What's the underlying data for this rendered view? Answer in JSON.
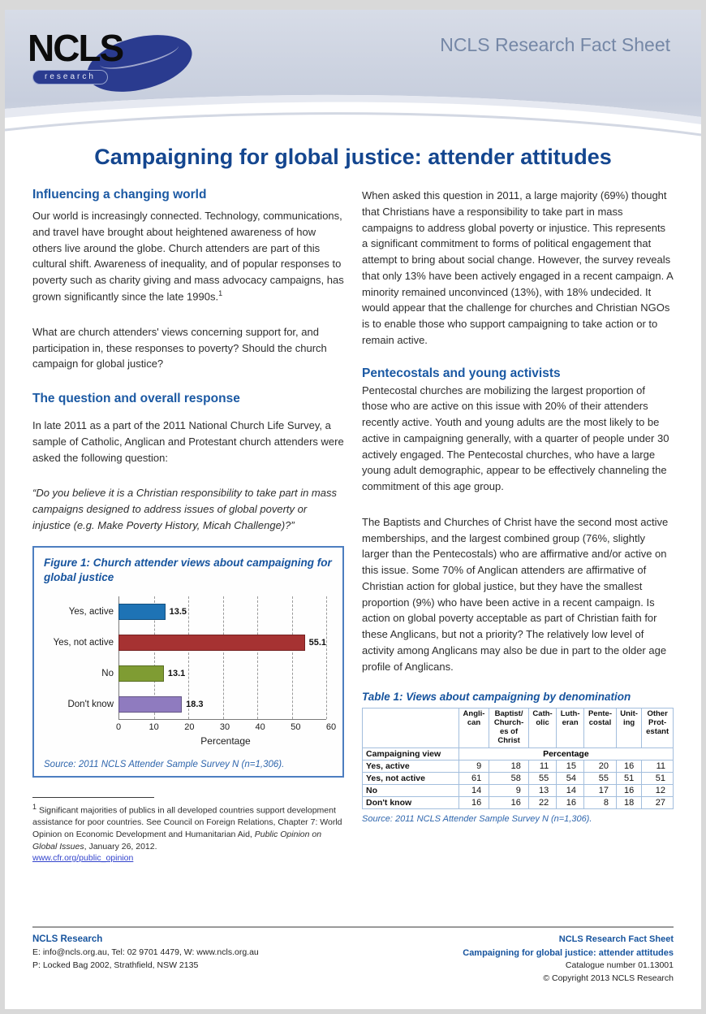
{
  "header": {
    "fact_sheet_label": "NCLS Research Fact Sheet",
    "logo_text": "NCLS",
    "logo_subtext": "research"
  },
  "title": "Campaigning for global justice: attender attitudes",
  "left_column": {
    "section1": {
      "heading": "Influencing a changing world",
      "p1": "Our world is increasingly connected. Technology, communications, and travel have brought about heightened awareness of how others live around the globe. Church attenders are part of this cultural shift. Awareness of inequality, and of popular responses to poverty such as charity giving and mass advocacy campaigns, has grown significantly since the late 1990s.",
      "p1_footnote_marker": "1",
      "p2": "What are church attenders' views concerning support for, and participation in, these responses to poverty? Should the church campaign for global justice?"
    },
    "section2": {
      "heading": "The question and overall response",
      "p1": "In late 2011 as a part of the 2011 National Church Life Survey, a sample of Catholic, Anglican and Protestant church attenders were asked the following question:",
      "quote": "“Do you believe it is a Christian responsibility to take part in mass campaigns designed to address issues of global poverty or injustice (e.g. Make Poverty History, Micah Challenge)?”"
    }
  },
  "figure": {
    "title": "Figure 1: Church attender views about campaigning for global justice",
    "source": "Source: 2011 NCLS Attender Sample Survey N (n=1,306)."
  },
  "chart_data": {
    "type": "bar",
    "orientation": "horizontal",
    "title": "Figure 1: Church attender views about campaigning for global justice",
    "categories": [
      "Yes, active",
      "Yes, not active",
      "No",
      "Don't know"
    ],
    "values": [
      13.5,
      55.1,
      13.1,
      18.3
    ],
    "colors": [
      "#1e73b5",
      "#a63232",
      "#7f9c33",
      "#8f7bbf"
    ],
    "xlabel": "Percentage",
    "ylabel": "",
    "xlim": [
      0,
      60
    ],
    "xticks": [
      0,
      10,
      20,
      30,
      40,
      50,
      60
    ],
    "grid": "dashed-vertical",
    "legend": "none",
    "source": "Source: 2011 NCLS Attender Sample Survey N (n=1,306)."
  },
  "right_column": {
    "p1": "When asked this question in 2011, a large majority (69%) thought that Christians have a responsibility to take part in mass campaigns to address global poverty or injustice. This represents a significant commitment to forms of political engagement that attempt to bring about social change. However, the survey reveals that only 13% have been actively engaged in a recent campaign.  A minority remained unconvinced (13%), with 18% undecided. It would appear that the challenge for churches and Christian NGOs is to enable those who support campaigning to take action or to remain active.",
    "section": {
      "heading": "Pentecostals and young activists",
      "p1": "Pentecostal churches are mobilizing the largest proportion of those who are active on this issue with 20% of their attenders recently active. Youth and young adults are the most likely to be active in campaigning generally, with a quarter of people under 30 actively engaged. The Pentecostal churches, who have a large young adult demographic, appear to be effectively channeling the commitment of this age group.",
      "p2": "The Baptists and Churches of Christ have the second most active memberships, and the largest combined group (76%, slightly larger than the Pentecostals) who are affirmative and/or active on this issue.  Some 70% of Anglican attenders are affirmative of Christian action for global justice, but they have the smallest proportion (9%) who have been active in a recent campaign. Is action on global poverty acceptable as part of Christian faith for these Anglicans, but not a priority? The relatively low level of activity among Anglicans may also be due in part to the older age profile of Anglicans."
    }
  },
  "table": {
    "title": "Table 1: Views about campaigning by denomination",
    "columns": [
      "Angli-\ncan",
      "Baptist/\nChurch-\nes of\nChrist",
      "Cath-\nolic",
      "Luth-\neran",
      "Pente-\ncostal",
      "Unit-\ning",
      "Other\nProt-\nestant"
    ],
    "subheader": {
      "label": "Campaigning view",
      "span_label": "Percentage"
    },
    "rows": [
      {
        "label": "Yes, active",
        "values": [
          9,
          18,
          11,
          15,
          20,
          16,
          11
        ]
      },
      {
        "label": "Yes, not active",
        "values": [
          61,
          58,
          55,
          54,
          55,
          51,
          51
        ]
      },
      {
        "label": "No",
        "values": [
          14,
          9,
          13,
          14,
          17,
          16,
          12
        ]
      },
      {
        "label": "Don't know",
        "values": [
          16,
          16,
          22,
          16,
          8,
          18,
          27
        ]
      }
    ],
    "source": "Source: 2011 NCLS Attender Sample Survey N (n=1,306)."
  },
  "footnote": {
    "marker": "1",
    "text_before": "Significant majorities of publics in all developed countries support development assistance for poor countries. See Council on Foreign Relations, Chapter 7: World Opinion on Economic Development and Humanitarian Aid, ",
    "italic_title": "Public Opinion on Global Issues",
    "text_after": ", January 26, 2012.",
    "link": "www.cfr.org/public_opinion"
  },
  "footer": {
    "left": {
      "org": "NCLS Research",
      "line1": "E: info@ncls.org.au, Tel: 02 9701 4479, W: www.ncls.org.au",
      "line2": "P: Locked Bag 2002, Strathfield, NSW 2135"
    },
    "right": {
      "line1": "NCLS Research Fact Sheet",
      "line2": "Campaigning for global justice: attender attitudes",
      "line3": "Catalogue number 01.13001",
      "line4": "© Copyright 2013 NCLS Research"
    }
  },
  "colors": {
    "accent_blue": "#17549e",
    "header_label_blue": "#7587a6",
    "logo_blue": "#2a3b8f",
    "bar_blue": "#1e73b5",
    "bar_red": "#a63232",
    "bar_green": "#7f9c33",
    "bar_purple": "#8f7bbf",
    "figure_border": "#4d7ec0",
    "table_border": "#a3bedd"
  }
}
